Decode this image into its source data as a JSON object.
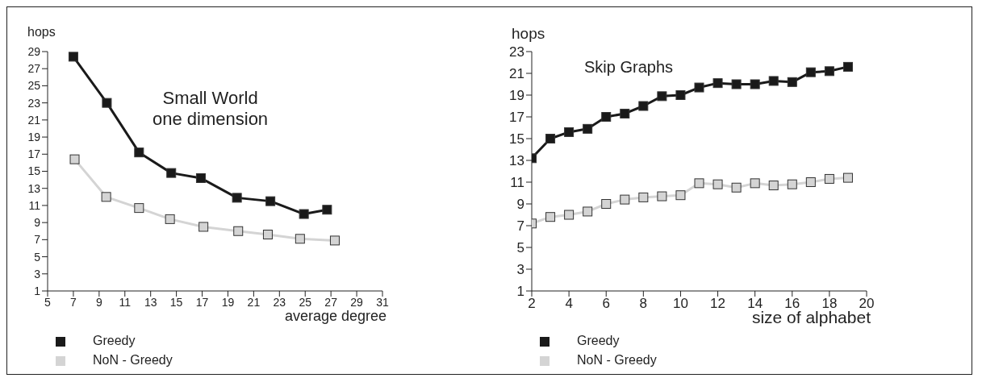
{
  "chart_data": [
    {
      "type": "line",
      "title": "Small World",
      "subtitle": "one dimension",
      "xlabel": "average degree",
      "ylabel": "hops",
      "xlim": [
        5,
        31
      ],
      "xticks": [
        5,
        7,
        9,
        11,
        13,
        15,
        17,
        19,
        21,
        23,
        25,
        27,
        29,
        31
      ],
      "ylim": [
        1,
        29
      ],
      "yticks": [
        1,
        3,
        5,
        7,
        9,
        11,
        13,
        15,
        17,
        19,
        21,
        23,
        25,
        27,
        29
      ],
      "grid": false,
      "legend": "bottom left",
      "marker": "square",
      "line_style": "solid",
      "series": [
        {
          "name": "Greedy",
          "color": "#1a1a1a",
          "x": [
            7.0,
            9.6,
            12.1,
            14.6,
            16.9,
            19.7,
            22.3,
            24.9,
            26.7
          ],
          "values": [
            28.4,
            23.0,
            17.2,
            14.8,
            14.2,
            11.9,
            11.5,
            10.0,
            10.5
          ]
        },
        {
          "name": "NoN - Greedy",
          "color": "#d4d4d4",
          "x": [
            7.1,
            9.55,
            12.1,
            14.5,
            17.1,
            19.8,
            22.1,
            24.6,
            27.3
          ],
          "values": [
            16.4,
            12.0,
            10.7,
            9.4,
            8.5,
            8.0,
            7.6,
            7.1,
            6.9
          ]
        }
      ]
    },
    {
      "type": "line",
      "title": "Skip Graphs",
      "xlabel": "size of alphabet",
      "ylabel": "hops",
      "xlim": [
        2,
        20
      ],
      "xticks": [
        2,
        4,
        6,
        8,
        10,
        12,
        14,
        16,
        18,
        20
      ],
      "ylim": [
        1,
        23
      ],
      "yticks": [
        1,
        3,
        5,
        7,
        9,
        11,
        13,
        15,
        17,
        19,
        21,
        23
      ],
      "grid": false,
      "legend": "bottom left",
      "marker": "square",
      "line_style": "solid",
      "series": [
        {
          "name": "Greedy",
          "color": "#1a1a1a",
          "x": [
            2,
            3,
            4,
            5,
            6,
            7,
            8,
            9,
            10,
            11,
            12,
            13,
            14,
            15,
            16,
            17,
            18,
            19
          ],
          "values": [
            13.2,
            15.0,
            15.6,
            15.9,
            17.0,
            17.3,
            18.0,
            18.9,
            19.0,
            19.7,
            20.1,
            20.0,
            20.0,
            20.3,
            20.2,
            21.1,
            21.2,
            21.6
          ]
        },
        {
          "name": "NoN - Greedy",
          "color": "#d4d4d4",
          "x": [
            2,
            3,
            4,
            5,
            6,
            7,
            8,
            9,
            10,
            11,
            12,
            13,
            14,
            15,
            16,
            17,
            18,
            19
          ],
          "values": [
            7.2,
            7.8,
            8.0,
            8.3,
            9.0,
            9.4,
            9.6,
            9.7,
            9.8,
            10.9,
            10.8,
            10.5,
            10.9,
            10.7,
            10.8,
            11.0,
            11.3,
            11.4
          ]
        }
      ]
    }
  ]
}
